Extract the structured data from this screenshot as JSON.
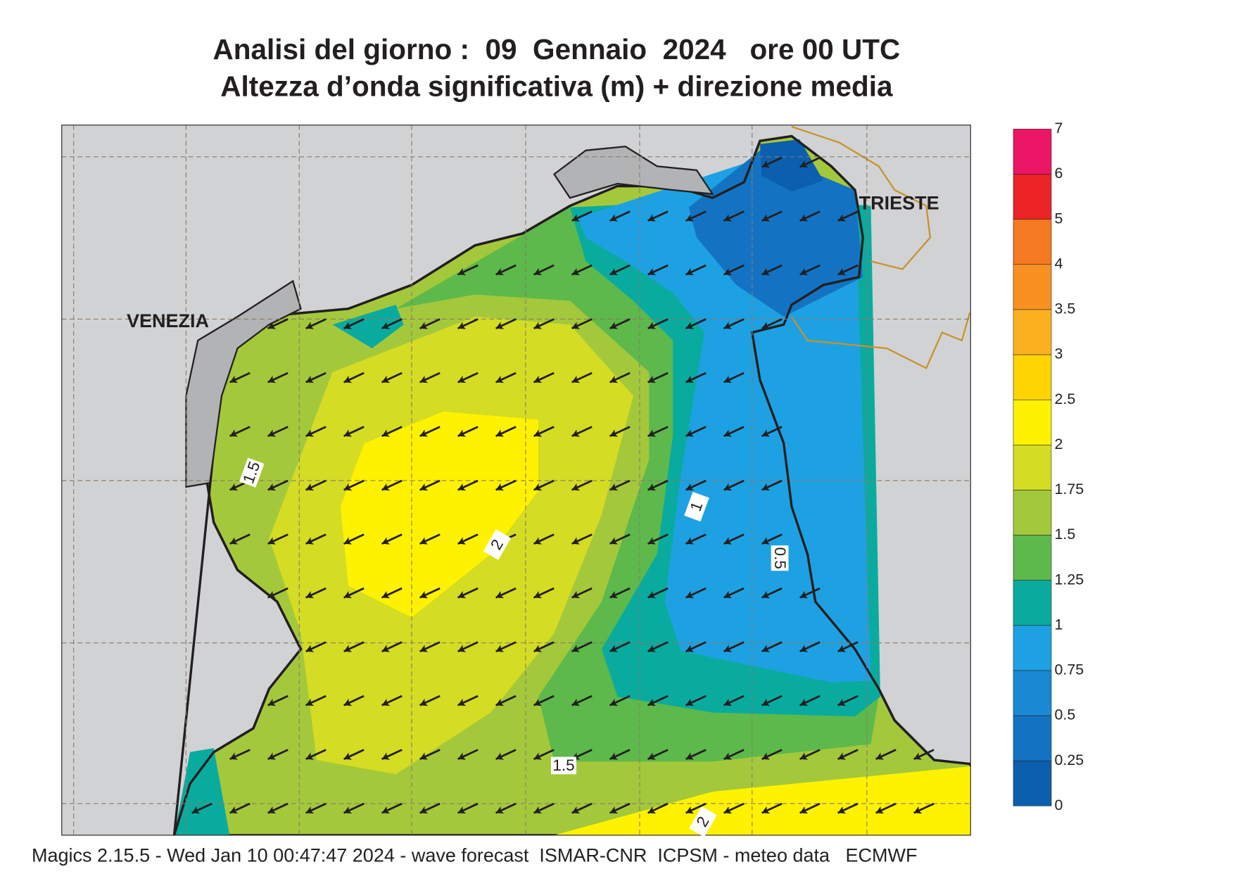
{
  "title": "Analisi del giorno :  09  Gennaio  2024   ore 00 UTC",
  "subtitle": "Altezza d’onda significativa (m) + direzione media",
  "cities": [
    "VENEZIA",
    "TRIESTE"
  ],
  "contour_labels": [
    1.5,
    1,
    0.5,
    2,
    1.5,
    2
  ],
  "colorbar": {
    "levels": [
      0,
      0.25,
      0.5,
      0.75,
      1,
      1.25,
      1.5,
      1.75,
      2,
      2.5,
      3,
      3.5,
      4,
      5,
      6,
      7
    ],
    "colors": [
      "#0b5fae",
      "#1373c2",
      "#1a89d4",
      "#1ea1e2",
      "#0aab9f",
      "#5db94b",
      "#a4c83b",
      "#d4dc23",
      "#fff200",
      "#ffd400",
      "#fbb11f",
      "#f89121",
      "#f47920",
      "#ec2426",
      "#ec1666"
    ]
  },
  "footer": "Magics 2.15.5 - Wed Jan 10 00:47:47 2024 - wave forecast  ISMAR-CNR  ICPSM - meteo data   ECMWF"
}
